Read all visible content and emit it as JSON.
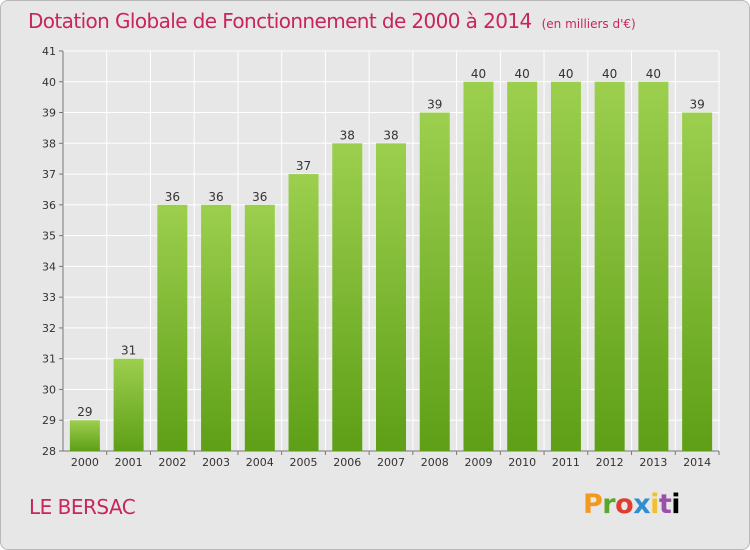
{
  "header": {
    "title": "Dotation Globale de Fonctionnement de 2000 à 2014",
    "subtitle": "(en milliers d'€)"
  },
  "footer": {
    "commune": "LE BERSAC",
    "brand_letters": [
      "P",
      "r",
      "o",
      "x",
      "i",
      "t",
      "i"
    ]
  },
  "colors": {
    "title": "#c8265b",
    "bar_top": "#9ccf4e",
    "bar_bottom": "#5e9f17",
    "background": "#e7e7e7",
    "grid": "#ffffff"
  },
  "chart_data": {
    "type": "bar",
    "categories": [
      "2000",
      "2001",
      "2002",
      "2003",
      "2004",
      "2005",
      "2006",
      "2007",
      "2008",
      "2009",
      "2010",
      "2011",
      "2012",
      "2013",
      "2014"
    ],
    "values": [
      29,
      31,
      36,
      36,
      36,
      37,
      38,
      38,
      39,
      40,
      40,
      40,
      40,
      40,
      39
    ],
    "ylim": [
      28,
      41
    ],
    "yticks": [
      28,
      29,
      30,
      31,
      32,
      33,
      34,
      35,
      36,
      37,
      38,
      39,
      40,
      41
    ],
    "grid": true,
    "data_labels": true
  }
}
